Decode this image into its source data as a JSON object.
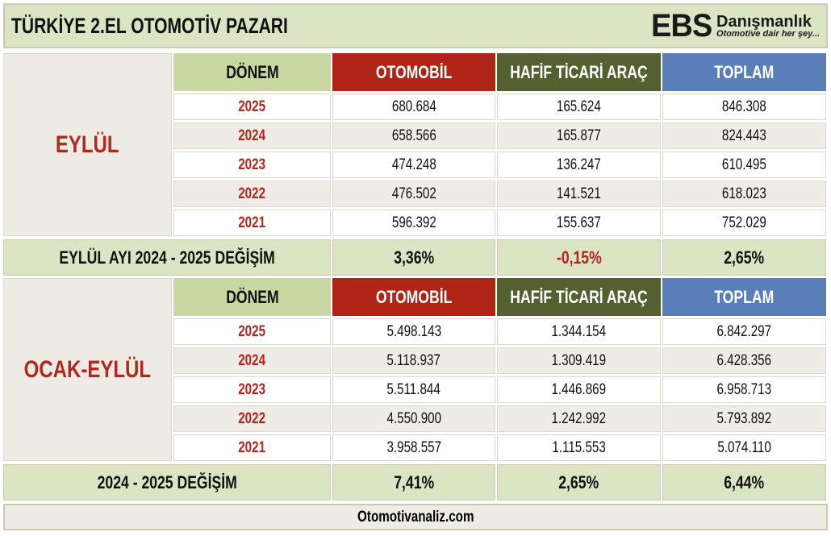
{
  "title": "TÜRKİYE 2.EL OTOMOTİV PAZARI",
  "logo": {
    "mark": "EBS",
    "name": "Danışmanlık",
    "tagline": "Otomotive dair her şey..."
  },
  "headers": {
    "donem": "DÖNEM",
    "otomobil": "OTOMOBİL",
    "hafif": "HAFİF TİCARİ ARAÇ",
    "toplam": "TOPLAM"
  },
  "colors": {
    "otomobil": "#b02418",
    "hafif": "#546030",
    "toplam": "#5a7fb8",
    "accent_red": "#b3261e",
    "summary_bg": "#dbe5c4"
  },
  "sections": [
    {
      "label": "EYLÜL",
      "rows": [
        {
          "year": "2025",
          "otomobil": "680.684",
          "hafif": "165.624",
          "toplam": "846.308"
        },
        {
          "year": "2024",
          "otomobil": "658.566",
          "hafif": "165.877",
          "toplam": "824.443"
        },
        {
          "year": "2023",
          "otomobil": "474.248",
          "hafif": "136.247",
          "toplam": "610.495"
        },
        {
          "year": "2022",
          "otomobil": "476.502",
          "hafif": "141.521",
          "toplam": "618.023"
        },
        {
          "year": "2021",
          "otomobil": "596.392",
          "hafif": "155.637",
          "toplam": "752.029"
        }
      ],
      "summary": {
        "label": "EYLÜL AYI  2024 - 2025 DEĞİŞİM",
        "otomobil": "3,36%",
        "hafif": "-0,15%",
        "toplam": "2,65%"
      }
    },
    {
      "label": "OCAK-EYLÜL",
      "rows": [
        {
          "year": "2025",
          "otomobil": "5.498.143",
          "hafif": "1.344.154",
          "toplam": "6.842.297"
        },
        {
          "year": "2024",
          "otomobil": "5.118.937",
          "hafif": "1.309.419",
          "toplam": "6.428.356"
        },
        {
          "year": "2023",
          "otomobil": "5.511.844",
          "hafif": "1.446.869",
          "toplam": "6.958.713"
        },
        {
          "year": "2022",
          "otomobil": "4.550.900",
          "hafif": "1.242.992",
          "toplam": "5.793.892"
        },
        {
          "year": "2021",
          "otomobil": "3.958.557",
          "hafif": "1.115.553",
          "toplam": "5.074.110"
        }
      ],
      "summary": {
        "label": "2024 - 2025 DEĞİŞİM",
        "otomobil": "7,41%",
        "hafif": "2,65%",
        "toplam": "6,44%"
      }
    }
  ],
  "footer": "Otomotivanaliz.com"
}
